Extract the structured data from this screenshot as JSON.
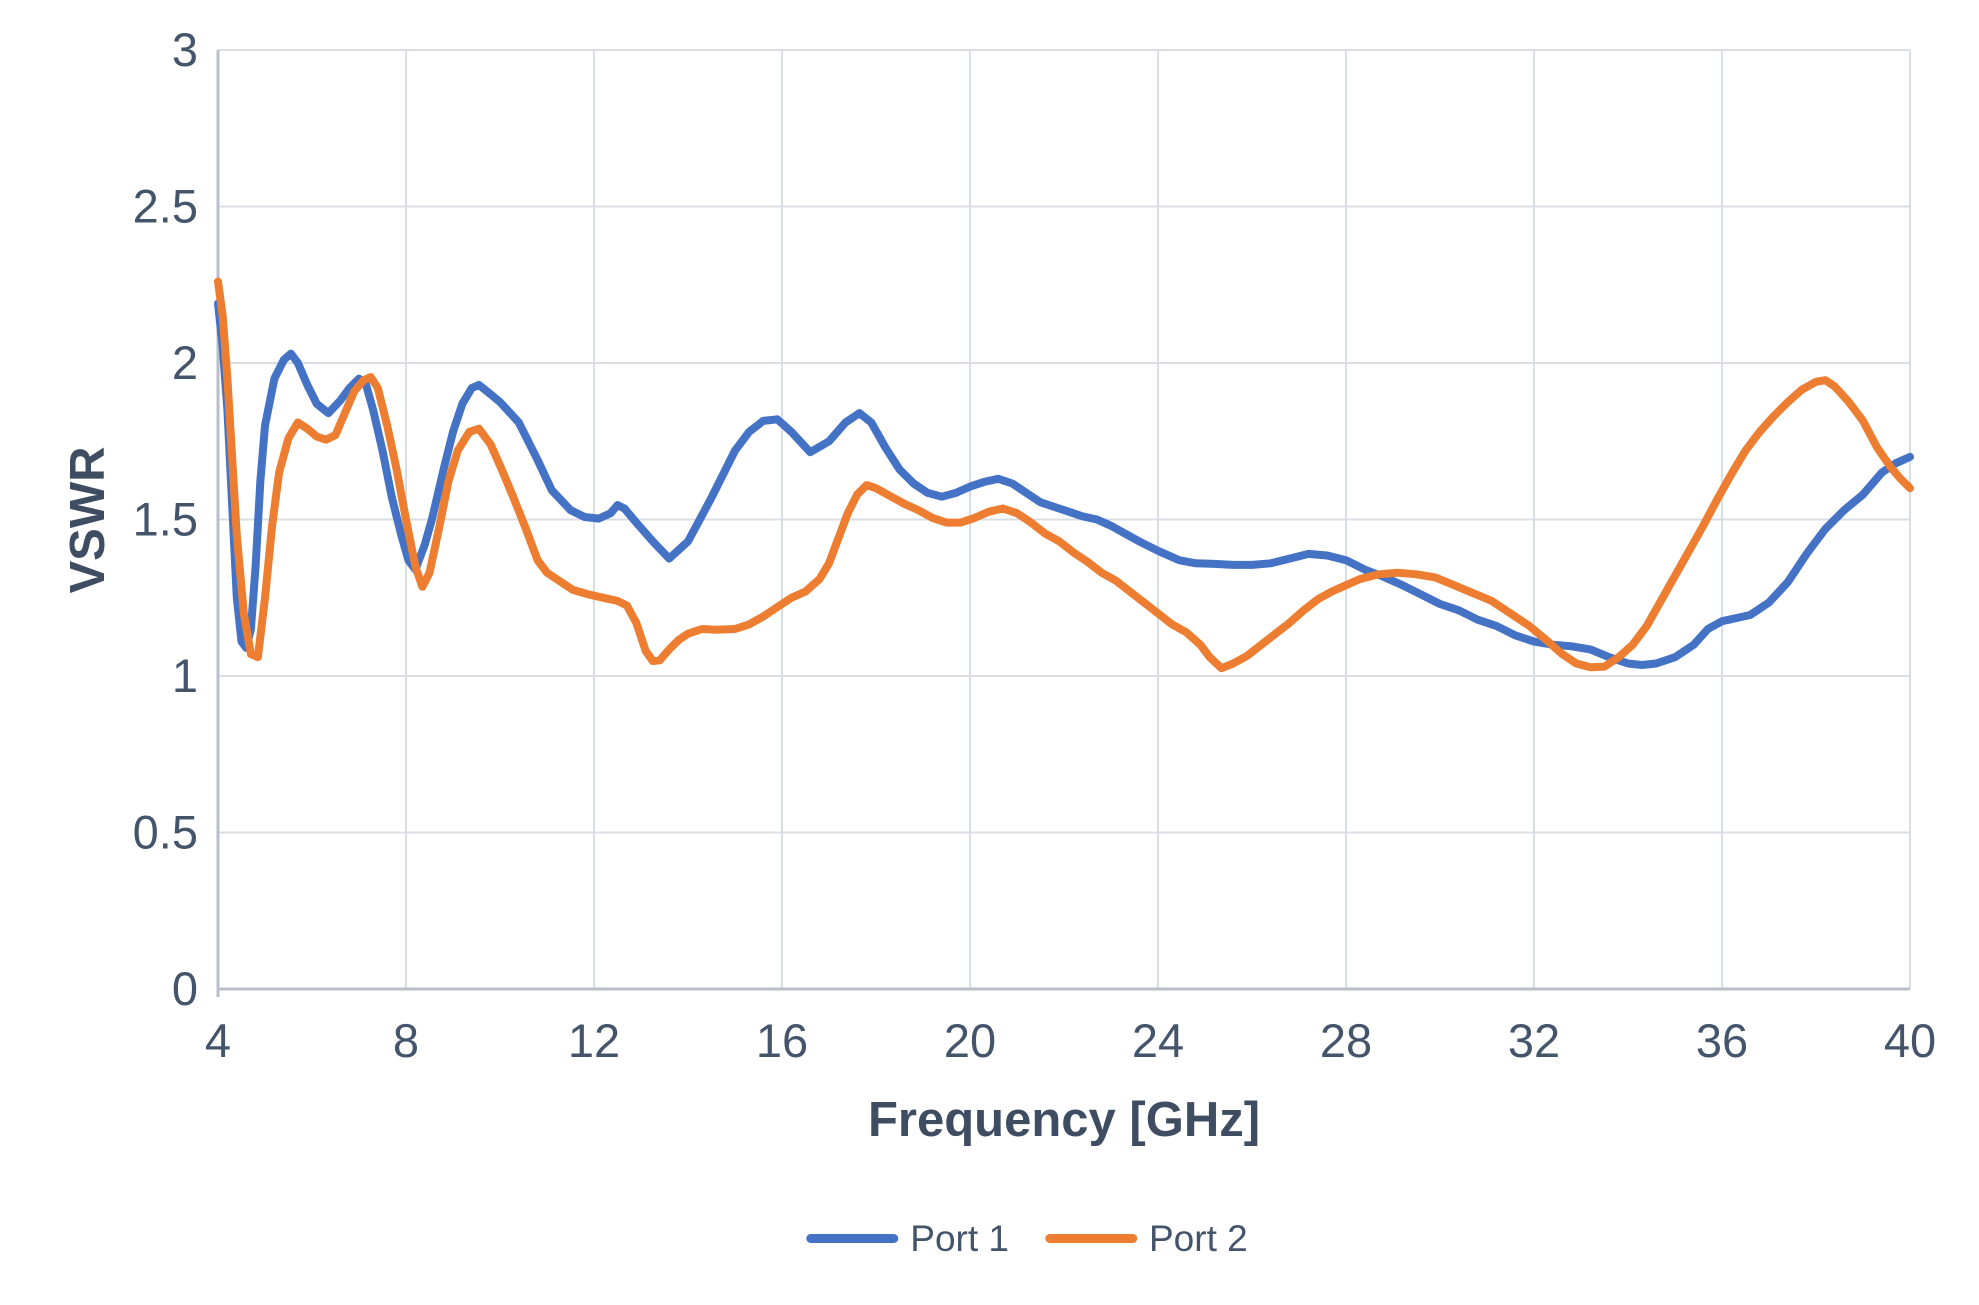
{
  "chart_data": {
    "type": "line",
    "title": "",
    "xlabel": "Frequency [GHz]",
    "ylabel": "VSWR",
    "xlim": [
      4,
      40
    ],
    "ylim": [
      0,
      3
    ],
    "grid": true,
    "legend_position": "bottom-center",
    "x_ticks": [
      {
        "v": 4,
        "label": "4"
      },
      {
        "v": 8,
        "label": "8"
      },
      {
        "v": 12,
        "label": "12"
      },
      {
        "v": 16,
        "label": "16"
      },
      {
        "v": 20,
        "label": "20"
      },
      {
        "v": 24,
        "label": "24"
      },
      {
        "v": 28,
        "label": "28"
      },
      {
        "v": 32,
        "label": "32"
      },
      {
        "v": 36,
        "label": "36"
      },
      {
        "v": 40,
        "label": "40"
      }
    ],
    "y_ticks": [
      {
        "v": 0,
        "label": "0"
      },
      {
        "v": 0.5,
        "label": "0.5"
      },
      {
        "v": 1,
        "label": "1"
      },
      {
        "v": 1.5,
        "label": "1.5"
      },
      {
        "v": 2,
        "label": "2"
      },
      {
        "v": 2.5,
        "label": "2.5"
      },
      {
        "v": 3,
        "label": "3"
      }
    ],
    "series": [
      {
        "name": "Port 1",
        "color": "#4472C4",
        "points": [
          [
            4,
            2.19
          ],
          [
            4.1,
            2.05
          ],
          [
            4.2,
            1.85
          ],
          [
            4.3,
            1.55
          ],
          [
            4.4,
            1.25
          ],
          [
            4.5,
            1.11
          ],
          [
            4.6,
            1.09
          ],
          [
            4.7,
            1.15
          ],
          [
            4.8,
            1.35
          ],
          [
            4.9,
            1.62
          ],
          [
            5,
            1.8
          ],
          [
            5.2,
            1.95
          ],
          [
            5.4,
            2.01
          ],
          [
            5.55,
            2.03
          ],
          [
            5.7,
            2
          ],
          [
            5.9,
            1.93
          ],
          [
            6.1,
            1.87
          ],
          [
            6.35,
            1.84
          ],
          [
            6.6,
            1.88
          ],
          [
            6.8,
            1.92
          ],
          [
            7,
            1.95
          ],
          [
            7.15,
            1.93
          ],
          [
            7.3,
            1.85
          ],
          [
            7.5,
            1.72
          ],
          [
            7.7,
            1.57
          ],
          [
            7.9,
            1.45
          ],
          [
            8.05,
            1.37
          ],
          [
            8.2,
            1.34
          ],
          [
            8.4,
            1.42
          ],
          [
            8.55,
            1.5
          ],
          [
            8.8,
            1.66
          ],
          [
            9,
            1.78
          ],
          [
            9.2,
            1.87
          ],
          [
            9.4,
            1.92
          ],
          [
            9.55,
            1.93
          ],
          [
            9.8,
            1.9
          ],
          [
            10,
            1.875
          ],
          [
            10.4,
            1.81
          ],
          [
            10.8,
            1.69
          ],
          [
            11.1,
            1.594
          ],
          [
            11.5,
            1.53
          ],
          [
            11.8,
            1.508
          ],
          [
            12.1,
            1.503
          ],
          [
            12.35,
            1.52
          ],
          [
            12.5,
            1.546
          ],
          [
            12.65,
            1.535
          ],
          [
            12.9,
            1.49
          ],
          [
            13.25,
            1.43
          ],
          [
            13.6,
            1.375
          ],
          [
            14,
            1.43
          ],
          [
            14.25,
            1.5
          ],
          [
            14.5,
            1.57
          ],
          [
            14.7,
            1.63
          ],
          [
            15,
            1.72
          ],
          [
            15.3,
            1.78
          ],
          [
            15.6,
            1.815
          ],
          [
            15.9,
            1.82
          ],
          [
            16.2,
            1.78
          ],
          [
            16.6,
            1.715
          ],
          [
            17,
            1.75
          ],
          [
            17.35,
            1.81
          ],
          [
            17.65,
            1.84
          ],
          [
            17.9,
            1.81
          ],
          [
            18.2,
            1.73
          ],
          [
            18.5,
            1.66
          ],
          [
            18.8,
            1.615
          ],
          [
            19.1,
            1.585
          ],
          [
            19.4,
            1.573
          ],
          [
            19.7,
            1.585
          ],
          [
            20,
            1.605
          ],
          [
            20.3,
            1.62
          ],
          [
            20.6,
            1.63
          ],
          [
            20.9,
            1.615
          ],
          [
            21.2,
            1.585
          ],
          [
            21.5,
            1.555
          ],
          [
            21.8,
            1.54
          ],
          [
            22.1,
            1.525
          ],
          [
            22.4,
            1.51
          ],
          [
            22.7,
            1.5
          ],
          [
            23,
            1.48
          ],
          [
            23.3,
            1.455
          ],
          [
            23.6,
            1.43
          ],
          [
            24,
            1.4
          ],
          [
            24.45,
            1.37
          ],
          [
            24.8,
            1.36
          ],
          [
            25.2,
            1.358
          ],
          [
            25.6,
            1.355
          ],
          [
            26,
            1.355
          ],
          [
            26.4,
            1.36
          ],
          [
            26.8,
            1.375
          ],
          [
            27.2,
            1.39
          ],
          [
            27.6,
            1.385
          ],
          [
            28,
            1.37
          ],
          [
            28.4,
            1.34
          ],
          [
            28.8,
            1.317
          ],
          [
            29.2,
            1.29
          ],
          [
            29.6,
            1.26
          ],
          [
            30,
            1.23
          ],
          [
            30.4,
            1.21
          ],
          [
            30.8,
            1.18
          ],
          [
            31.2,
            1.16
          ],
          [
            31.6,
            1.13
          ],
          [
            32,
            1.11
          ],
          [
            32.4,
            1.1
          ],
          [
            32.8,
            1.095
          ],
          [
            33.2,
            1.085
          ],
          [
            33.6,
            1.06
          ],
          [
            34,
            1.04
          ],
          [
            34.3,
            1.035
          ],
          [
            34.6,
            1.04
          ],
          [
            35,
            1.06
          ],
          [
            35.4,
            1.1
          ],
          [
            35.7,
            1.15
          ],
          [
            36,
            1.175
          ],
          [
            36.3,
            1.185
          ],
          [
            36.6,
            1.195
          ],
          [
            37,
            1.235
          ],
          [
            37.4,
            1.3
          ],
          [
            37.8,
            1.39
          ],
          [
            38.2,
            1.47
          ],
          [
            38.6,
            1.53
          ],
          [
            39,
            1.58
          ],
          [
            39.4,
            1.65
          ],
          [
            39.7,
            1.68
          ],
          [
            40,
            1.7
          ]
        ]
      },
      {
        "name": "Port 2",
        "color": "#ED7D31",
        "points": [
          [
            4,
            2.26
          ],
          [
            4.1,
            2.15
          ],
          [
            4.2,
            1.95
          ],
          [
            4.3,
            1.7
          ],
          [
            4.4,
            1.45
          ],
          [
            4.55,
            1.2
          ],
          [
            4.7,
            1.07
          ],
          [
            4.85,
            1.06
          ],
          [
            5,
            1.25
          ],
          [
            5.15,
            1.48
          ],
          [
            5.3,
            1.65
          ],
          [
            5.5,
            1.76
          ],
          [
            5.7,
            1.81
          ],
          [
            5.9,
            1.79
          ],
          [
            6.1,
            1.765
          ],
          [
            6.3,
            1.755
          ],
          [
            6.5,
            1.77
          ],
          [
            6.7,
            1.84
          ],
          [
            6.9,
            1.91
          ],
          [
            7.1,
            1.945
          ],
          [
            7.25,
            1.955
          ],
          [
            7.4,
            1.92
          ],
          [
            7.6,
            1.8
          ],
          [
            7.8,
            1.66
          ],
          [
            8,
            1.5
          ],
          [
            8.2,
            1.35
          ],
          [
            8.35,
            1.285
          ],
          [
            8.5,
            1.33
          ],
          [
            8.7,
            1.47
          ],
          [
            8.9,
            1.62
          ],
          [
            9.1,
            1.72
          ],
          [
            9.35,
            1.78
          ],
          [
            9.55,
            1.79
          ],
          [
            9.8,
            1.74
          ],
          [
            10.05,
            1.655
          ],
          [
            10.3,
            1.565
          ],
          [
            10.55,
            1.47
          ],
          [
            10.8,
            1.37
          ],
          [
            11,
            1.33
          ],
          [
            11.3,
            1.3
          ],
          [
            11.55,
            1.275
          ],
          [
            11.9,
            1.26
          ],
          [
            12.2,
            1.25
          ],
          [
            12.5,
            1.24
          ],
          [
            12.7,
            1.225
          ],
          [
            12.9,
            1.17
          ],
          [
            13.1,
            1.08
          ],
          [
            13.25,
            1.048
          ],
          [
            13.4,
            1.05
          ],
          [
            13.6,
            1.085
          ],
          [
            13.8,
            1.115
          ],
          [
            14,
            1.135
          ],
          [
            14.3,
            1.15
          ],
          [
            14.6,
            1.148
          ],
          [
            15,
            1.15
          ],
          [
            15.3,
            1.165
          ],
          [
            15.6,
            1.19
          ],
          [
            15.9,
            1.22
          ],
          [
            16.2,
            1.25
          ],
          [
            16.5,
            1.27
          ],
          [
            16.8,
            1.31
          ],
          [
            17,
            1.36
          ],
          [
            17.2,
            1.44
          ],
          [
            17.4,
            1.52
          ],
          [
            17.6,
            1.58
          ],
          [
            17.8,
            1.61
          ],
          [
            18,
            1.6
          ],
          [
            18.3,
            1.575
          ],
          [
            18.6,
            1.55
          ],
          [
            18.9,
            1.53
          ],
          [
            19.2,
            1.505
          ],
          [
            19.5,
            1.49
          ],
          [
            19.8,
            1.49
          ],
          [
            20.1,
            1.505
          ],
          [
            20.4,
            1.525
          ],
          [
            20.7,
            1.535
          ],
          [
            21,
            1.52
          ],
          [
            21.3,
            1.49
          ],
          [
            21.6,
            1.455
          ],
          [
            21.9,
            1.43
          ],
          [
            22.2,
            1.395
          ],
          [
            22.5,
            1.365
          ],
          [
            22.8,
            1.33
          ],
          [
            23.1,
            1.305
          ],
          [
            23.4,
            1.27
          ],
          [
            23.7,
            1.235
          ],
          [
            24,
            1.2
          ],
          [
            24.3,
            1.165
          ],
          [
            24.6,
            1.14
          ],
          [
            24.9,
            1.1
          ],
          [
            25.1,
            1.06
          ],
          [
            25.35,
            1.025
          ],
          [
            25.6,
            1.04
          ],
          [
            25.9,
            1.065
          ],
          [
            26.2,
            1.1
          ],
          [
            26.5,
            1.135
          ],
          [
            26.8,
            1.17
          ],
          [
            27.1,
            1.21
          ],
          [
            27.4,
            1.245
          ],
          [
            27.7,
            1.27
          ],
          [
            28,
            1.29
          ],
          [
            28.3,
            1.31
          ],
          [
            28.7,
            1.325
          ],
          [
            29.1,
            1.33
          ],
          [
            29.5,
            1.325
          ],
          [
            29.9,
            1.315
          ],
          [
            30.3,
            1.29
          ],
          [
            30.7,
            1.265
          ],
          [
            31.1,
            1.24
          ],
          [
            31.5,
            1.2
          ],
          [
            31.9,
            1.16
          ],
          [
            32.3,
            1.11
          ],
          [
            32.6,
            1.07
          ],
          [
            32.9,
            1.04
          ],
          [
            33.2,
            1.028
          ],
          [
            33.5,
            1.03
          ],
          [
            33.8,
            1.06
          ],
          [
            34.1,
            1.1
          ],
          [
            34.4,
            1.16
          ],
          [
            34.7,
            1.24
          ],
          [
            35,
            1.32
          ],
          [
            35.3,
            1.4
          ],
          [
            35.6,
            1.48
          ],
          [
            35.9,
            1.565
          ],
          [
            36.2,
            1.645
          ],
          [
            36.5,
            1.72
          ],
          [
            36.8,
            1.78
          ],
          [
            37.1,
            1.83
          ],
          [
            37.4,
            1.875
          ],
          [
            37.7,
            1.915
          ],
          [
            38,
            1.94
          ],
          [
            38.2,
            1.945
          ],
          [
            38.4,
            1.925
          ],
          [
            38.7,
            1.875
          ],
          [
            39,
            1.815
          ],
          [
            39.3,
            1.73
          ],
          [
            39.6,
            1.665
          ],
          [
            39.8,
            1.63
          ],
          [
            40,
            1.6
          ]
        ]
      }
    ]
  },
  "legend": {
    "items": [
      {
        "label": "Port 1",
        "color": "#4472C4"
      },
      {
        "label": "Port 2",
        "color": "#ED7D31"
      }
    ]
  },
  "colors": {
    "series_port1": "#4472C4",
    "series_port2": "#ED7D31",
    "gridline": "#D9DDE4",
    "axis_line": "#B9BFC9",
    "tick_text": "#44546A",
    "title_text": "#3F4D63",
    "background": "#FFFFFF"
  }
}
